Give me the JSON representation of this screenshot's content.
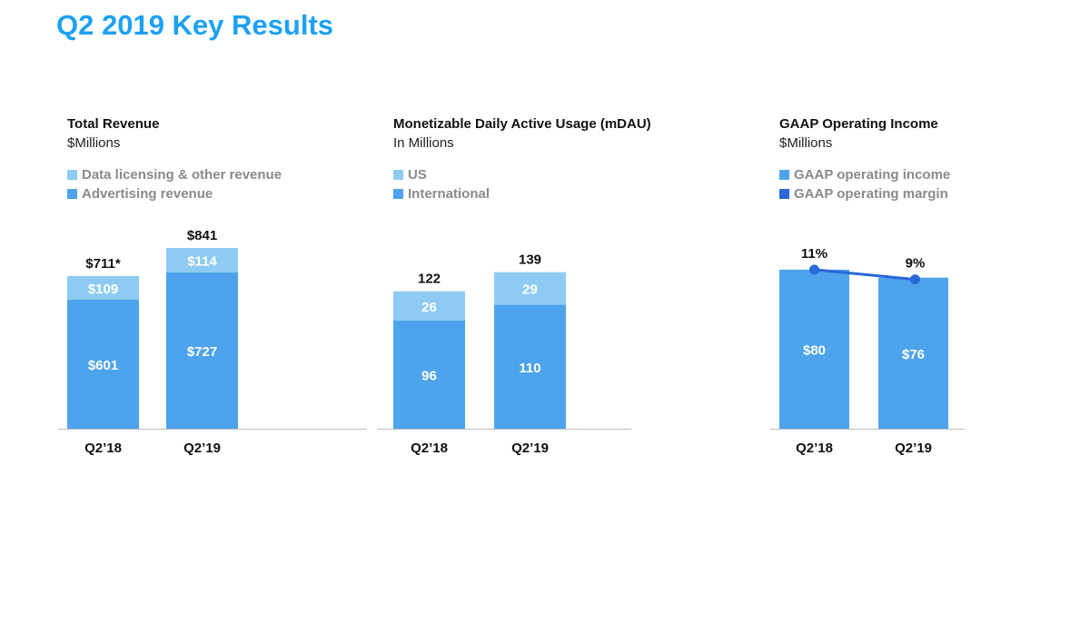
{
  "page": {
    "title": "Q2 2019 Key Results"
  },
  "colors": {
    "title": "#1da1f2",
    "light": "#8dcbf3",
    "mid": "#4da3ec",
    "dark": "#2a68d8",
    "axis": "#bdbdbd"
  },
  "chart_data": [
    {
      "type": "bar",
      "stacked": true,
      "title": "Total Revenue",
      "subtitle": "$Millions",
      "categories": [
        "Q2’18",
        "Q2’19"
      ],
      "series": [
        {
          "name": "Advertising revenue",
          "values": [
            601,
            727
          ],
          "labels": [
            "$601",
            "$727"
          ],
          "color": "#4da3ec"
        },
        {
          "name": "Data licensing & other revenue",
          "values": [
            109,
            114
          ],
          "labels": [
            "$109",
            "$114"
          ],
          "color": "#8dcbf3"
        }
      ],
      "totals": [
        "$711*",
        "$841"
      ],
      "legend": [
        {
          "label": "Data licensing & other revenue",
          "color": "#8dcbf3"
        },
        {
          "label": "Advertising revenue",
          "color": "#4da3ec"
        }
      ],
      "ylim": [
        0,
        841
      ]
    },
    {
      "type": "bar",
      "stacked": true,
      "title": "Monetizable Daily Active Usage (mDAU)",
      "subtitle": "In Millions",
      "categories": [
        "Q2’18",
        "Q2’19"
      ],
      "series": [
        {
          "name": "International",
          "values": [
            96,
            110
          ],
          "labels": [
            "96",
            "110"
          ],
          "color": "#4da3ec"
        },
        {
          "name": "US",
          "values": [
            26,
            29
          ],
          "labels": [
            "26",
            "29"
          ],
          "color": "#8dcbf3"
        }
      ],
      "totals": [
        "122",
        "139"
      ],
      "legend": [
        {
          "label": "US",
          "color": "#8dcbf3"
        },
        {
          "label": "International",
          "color": "#4da3ec"
        }
      ],
      "ylim": [
        0,
        175
      ]
    },
    {
      "type": "bar",
      "stacked": false,
      "title": "GAAP Operating Income",
      "subtitle": "$Millions",
      "categories": [
        "Q2’18",
        "Q2’19"
      ],
      "series": [
        {
          "name": "GAAP operating income",
          "values": [
            80,
            76
          ],
          "labels": [
            "$80",
            "$76"
          ],
          "color": "#4da3ec"
        }
      ],
      "line": {
        "name": "GAAP operating margin",
        "values": [
          11,
          9
        ],
        "labels": [
          "11%",
          "9%"
        ],
        "unit": "%",
        "color": "#2a68d8"
      },
      "legend": [
        {
          "label": "GAAP operating income",
          "color": "#4da3ec"
        },
        {
          "label": "GAAP operating margin",
          "color": "#2a68d8"
        }
      ],
      "ylim": [
        0,
        106
      ]
    }
  ]
}
